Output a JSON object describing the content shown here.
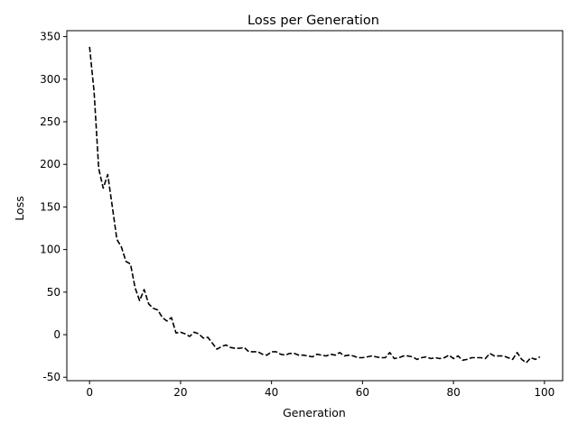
{
  "chart_data": {
    "type": "line",
    "title": "Loss per Generation",
    "xlabel": "Generation",
    "ylabel": "Loss",
    "xlim": [
      -5,
      104
    ],
    "ylim": [
      -54,
      357
    ],
    "xticks": [
      0,
      20,
      40,
      60,
      80,
      100
    ],
    "yticks": [
      -50,
      0,
      50,
      100,
      150,
      200,
      250,
      300,
      350
    ],
    "grid": false,
    "legend": "none",
    "line_color": "#000000",
    "line_style": "dashed",
    "series": [
      {
        "x": [
          0,
          1,
          2,
          3,
          4,
          5,
          6,
          7,
          8,
          9,
          10,
          11,
          12,
          13,
          14,
          15,
          16,
          17,
          18,
          19,
          20,
          21,
          22,
          23,
          24,
          25,
          26,
          27,
          28,
          29,
          30,
          31,
          32,
          33,
          34,
          35,
          36,
          37,
          38,
          39,
          40,
          41,
          42,
          43,
          44,
          45,
          46,
          47,
          48,
          49,
          50,
          51,
          52,
          53,
          54,
          55,
          56,
          57,
          58,
          59,
          60,
          61,
          62,
          63,
          64,
          65,
          66,
          67,
          68,
          69,
          70,
          71,
          72,
          73,
          74,
          75,
          76,
          77,
          78,
          79,
          80,
          81,
          82,
          83,
          84,
          85,
          86,
          87,
          88,
          89,
          90,
          91,
          92,
          93,
          94,
          95,
          96,
          97,
          98,
          99
        ],
        "values": [
          338,
          285,
          195,
          172,
          188,
          150,
          112,
          103,
          86,
          83,
          55,
          40,
          53,
          36,
          31,
          29,
          20,
          16,
          20,
          2,
          3,
          1,
          -2,
          3,
          1,
          -4,
          -3,
          -10,
          -17,
          -14,
          -12,
          -15,
          -16,
          -16,
          -15,
          -20,
          -20,
          -20,
          -23,
          -24,
          -20,
          -20,
          -23,
          -24,
          -22,
          -22,
          -24,
          -24,
          -25,
          -26,
          -23,
          -24,
          -25,
          -23,
          -24,
          -21,
          -25,
          -24,
          -25,
          -27,
          -27,
          -26,
          -25,
          -26,
          -27,
          -27,
          -21,
          -28,
          -27,
          -25,
          -25,
          -26,
          -29,
          -27,
          -26,
          -28,
          -27,
          -28,
          -27,
          -24,
          -28,
          -25,
          -30,
          -29,
          -27,
          -27,
          -27,
          -28,
          -22,
          -25,
          -25,
          -25,
          -27,
          -29,
          -21,
          -29,
          -33,
          -27,
          -29,
          -26
        ]
      }
    ]
  }
}
